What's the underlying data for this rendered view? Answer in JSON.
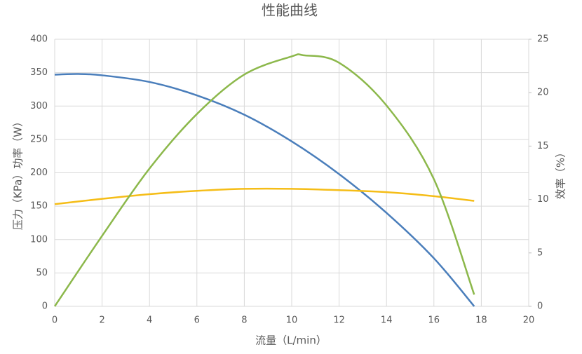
{
  "chart_data": {
    "type": "line",
    "title": "性能曲线",
    "x_label": "流量（L/min）",
    "y_label": "压力（KPa）功率（W）",
    "y2_label": "效率（%）",
    "xlim": [
      0,
      20
    ],
    "xticks": [
      0,
      2,
      4,
      6,
      8,
      10,
      12,
      14,
      16,
      18,
      20
    ],
    "ylim": [
      0,
      400
    ],
    "yticks": [
      0,
      50,
      100,
      150,
      200,
      250,
      300,
      350,
      400
    ],
    "y2lim": [
      0,
      25
    ],
    "y2ticks": [
      0,
      5,
      10,
      15,
      20,
      25
    ],
    "grid": true,
    "series": [
      {
        "color": "#4a7ebb",
        "x": [
          0,
          1,
          2,
          4,
          6,
          8,
          10,
          12,
          14,
          16,
          17.7
        ],
        "values": [
          347,
          348,
          346,
          336,
          316,
          287,
          247,
          198,
          140,
          72,
          0
        ]
      },
      {
        "color": "#f5bd17",
        "x": [
          0,
          2,
          4,
          6,
          8,
          10,
          12,
          14,
          16,
          17.7
        ],
        "values": [
          153,
          161,
          168,
          173,
          176,
          176,
          174,
          171,
          165,
          158
        ]
      },
      {
        "color": "#8cb84b",
        "axis": "y2",
        "x": [
          0,
          2,
          4,
          6,
          8,
          10,
          10.5,
          12,
          14,
          16,
          17.7
        ],
        "values": [
          0,
          6.6,
          12.9,
          18,
          21.7,
          23.4,
          23.5,
          22.8,
          18.8,
          11.9,
          1.1
        ]
      }
    ]
  }
}
